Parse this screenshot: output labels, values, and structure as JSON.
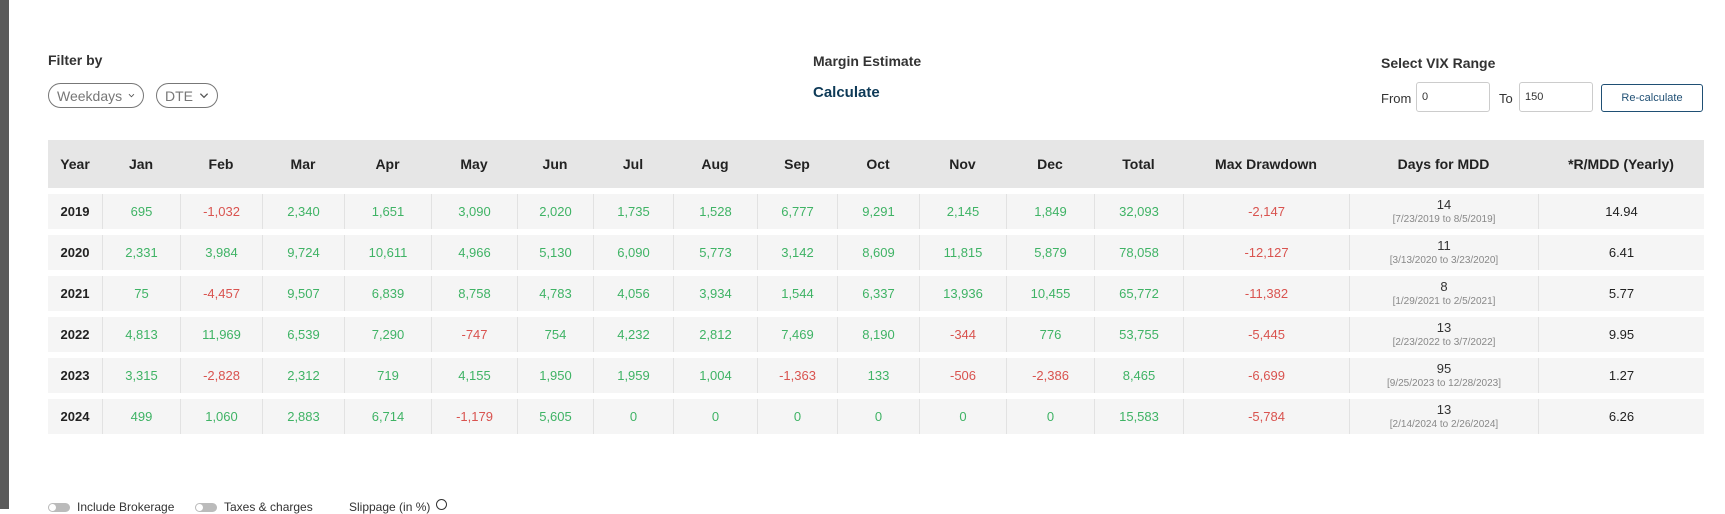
{
  "filter": {
    "label": "Filter by",
    "weekdays_label": "Weekdays",
    "dte_label": "DTE"
  },
  "margin": {
    "label": "Margin Estimate",
    "calculate_label": "Calculate"
  },
  "vix": {
    "label": "Select VIX Range",
    "from_label": "From",
    "from_value": "0",
    "to_label": "To",
    "to_value": "150",
    "recalc_label": "Re-calculate"
  },
  "table": {
    "headers": [
      "Year",
      "Jan",
      "Feb",
      "Mar",
      "Apr",
      "May",
      "Jun",
      "Jul",
      "Aug",
      "Sep",
      "Oct",
      "Nov",
      "Dec",
      "Total",
      "Max Drawdown",
      "Days for MDD",
      "*R/MDD (Yearly)"
    ],
    "rows": [
      {
        "year": "2019",
        "months": [
          "695",
          "-1,032",
          "2,340",
          "1,651",
          "3,090",
          "2,020",
          "1,735",
          "1,528",
          "6,777",
          "9,291",
          "2,145",
          "1,849"
        ],
        "total": "32,093",
        "mdd": "-2,147",
        "days": "14",
        "range": "[7/23/2019 to 8/5/2019]",
        "ratio": "14.94"
      },
      {
        "year": "2020",
        "months": [
          "2,331",
          "3,984",
          "9,724",
          "10,611",
          "4,966",
          "5,130",
          "6,090",
          "5,773",
          "3,142",
          "8,609",
          "11,815",
          "5,879"
        ],
        "total": "78,058",
        "mdd": "-12,127",
        "days": "11",
        "range": "[3/13/2020 to 3/23/2020]",
        "ratio": "6.41"
      },
      {
        "year": "2021",
        "months": [
          "75",
          "-4,457",
          "9,507",
          "6,839",
          "8,758",
          "4,783",
          "4,056",
          "3,934",
          "1,544",
          "6,337",
          "13,936",
          "10,455"
        ],
        "total": "65,772",
        "mdd": "-11,382",
        "days": "8",
        "range": "[1/29/2021 to 2/5/2021]",
        "ratio": "5.77"
      },
      {
        "year": "2022",
        "months": [
          "4,813",
          "11,969",
          "6,539",
          "7,290",
          "-747",
          "754",
          "4,232",
          "2,812",
          "7,469",
          "8,190",
          "-344",
          "776"
        ],
        "total": "53,755",
        "mdd": "-5,445",
        "days": "13",
        "range": "[2/23/2022 to 3/7/2022]",
        "ratio": "9.95"
      },
      {
        "year": "2023",
        "months": [
          "3,315",
          "-2,828",
          "2,312",
          "719",
          "4,155",
          "1,950",
          "1,959",
          "1,004",
          "-1,363",
          "133",
          "-506",
          "-2,386"
        ],
        "total": "8,465",
        "mdd": "-6,699",
        "days": "95",
        "range": "[9/25/2023 to 12/28/2023]",
        "ratio": "1.27"
      },
      {
        "year": "2024",
        "months": [
          "499",
          "1,060",
          "2,883",
          "6,714",
          "-1,179",
          "5,605",
          "0",
          "0",
          "0",
          "0",
          "0",
          "0"
        ],
        "total": "15,583",
        "mdd": "-5,784",
        "days": "13",
        "range": "[2/14/2024 to 2/26/2024]",
        "ratio": "6.26"
      }
    ]
  },
  "footer": {
    "brokerage_label": "Include Brokerage",
    "taxes_label": "Taxes & charges",
    "slippage_label": "Slippage (in %)"
  },
  "colors": {
    "positive": "#3fb365",
    "negative": "#d9534f",
    "accent": "#1f4f74"
  },
  "icons": [
    "chevron-down-icon",
    "info-icon"
  ]
}
